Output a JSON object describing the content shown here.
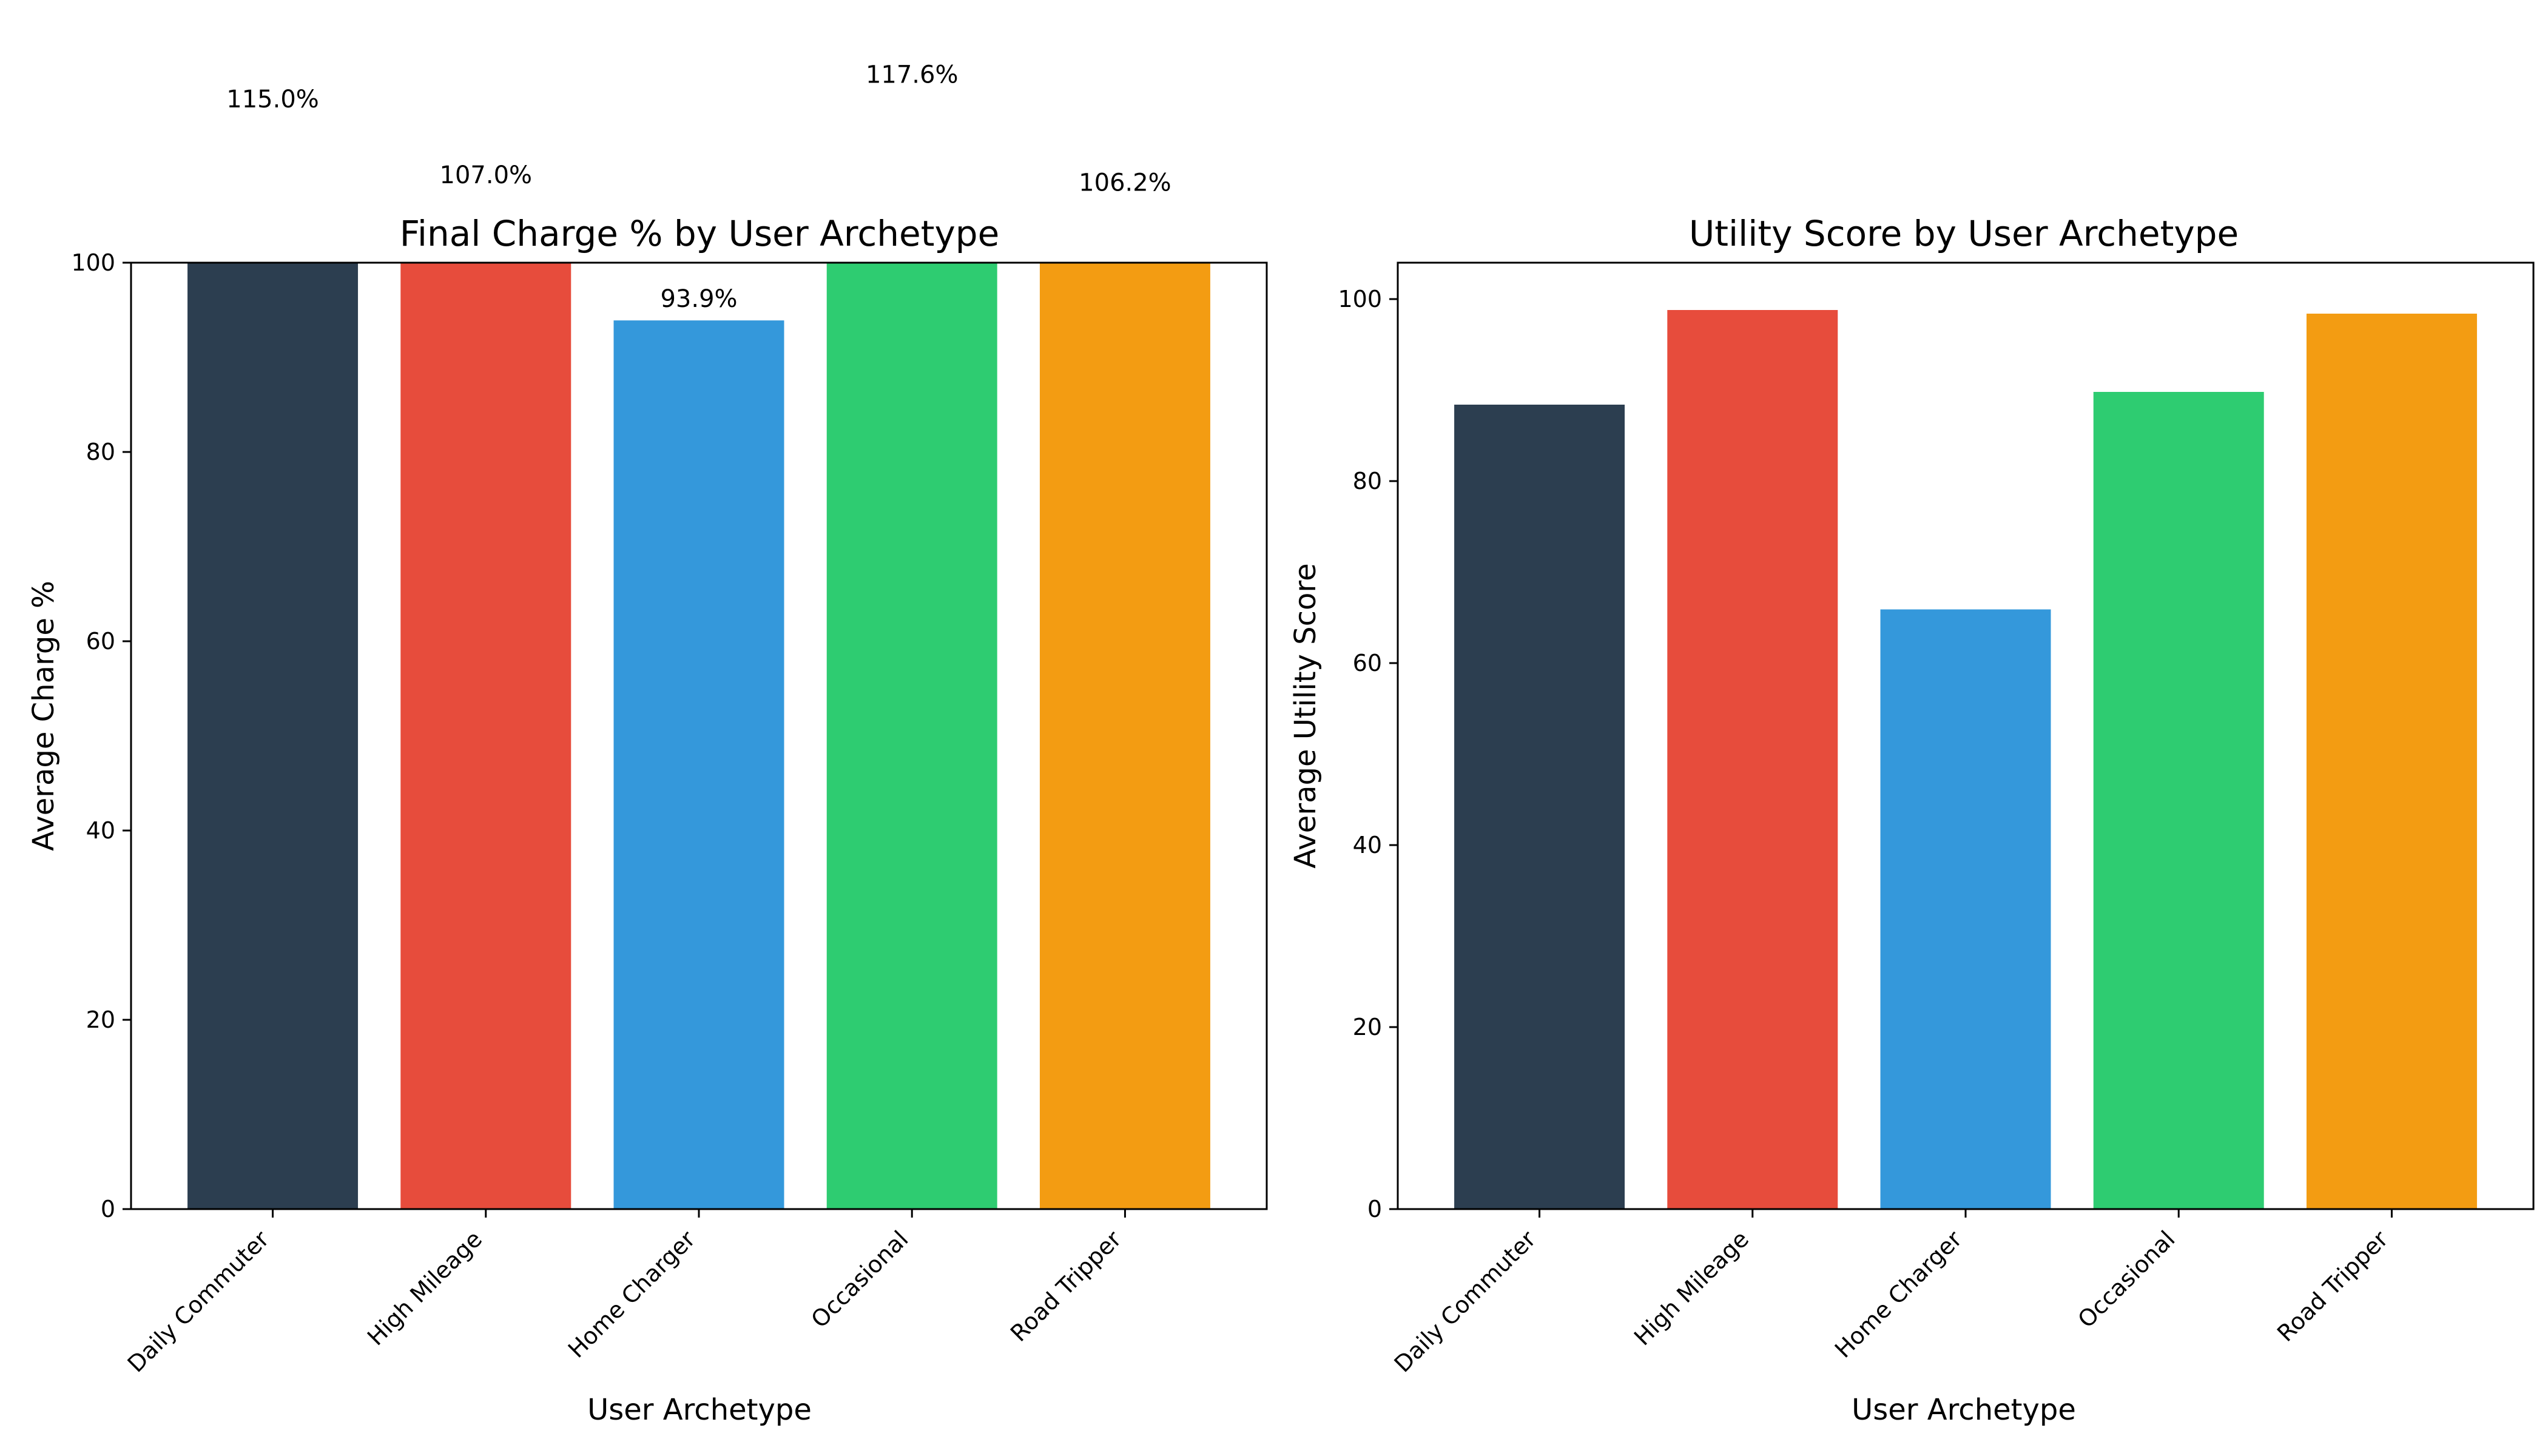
{
  "chart_data": [
    {
      "type": "bar",
      "title": "Final Charge % by User Archetype",
      "xlabel": "User Archetype",
      "ylabel": "Average Charge %",
      "categories": [
        "Daily Commuter",
        "High Mileage",
        "Home Charger",
        "Occasional",
        "Road Tripper"
      ],
      "values": [
        115.0,
        107.0,
        93.9,
        117.6,
        106.2
      ],
      "value_labels": [
        "115.0%",
        "107.0%",
        "93.9%",
        "117.6%",
        "106.2%"
      ],
      "colors": [
        "#2c3e50",
        "#e74c3c",
        "#3498db",
        "#2ecc71",
        "#f39c12"
      ],
      "ylim": [
        0,
        100
      ],
      "yticks": [
        0,
        20,
        40,
        60,
        80,
        100
      ],
      "grid": false
    },
    {
      "type": "bar",
      "title": "Utility Score by User Archetype",
      "xlabel": "User Archetype",
      "ylabel": "Average Utility Score",
      "categories": [
        "Daily Commuter",
        "High Mileage",
        "Home Charger",
        "Occasional",
        "Road Tripper"
      ],
      "values": [
        88.4,
        98.8,
        65.9,
        89.8,
        98.4
      ],
      "colors": [
        "#2c3e50",
        "#e74c3c",
        "#3498db",
        "#2ecc71",
        "#f39c12"
      ],
      "ylim": [
        0,
        104
      ],
      "yticks": [
        0,
        20,
        40,
        60,
        80,
        100
      ],
      "grid": false
    }
  ]
}
